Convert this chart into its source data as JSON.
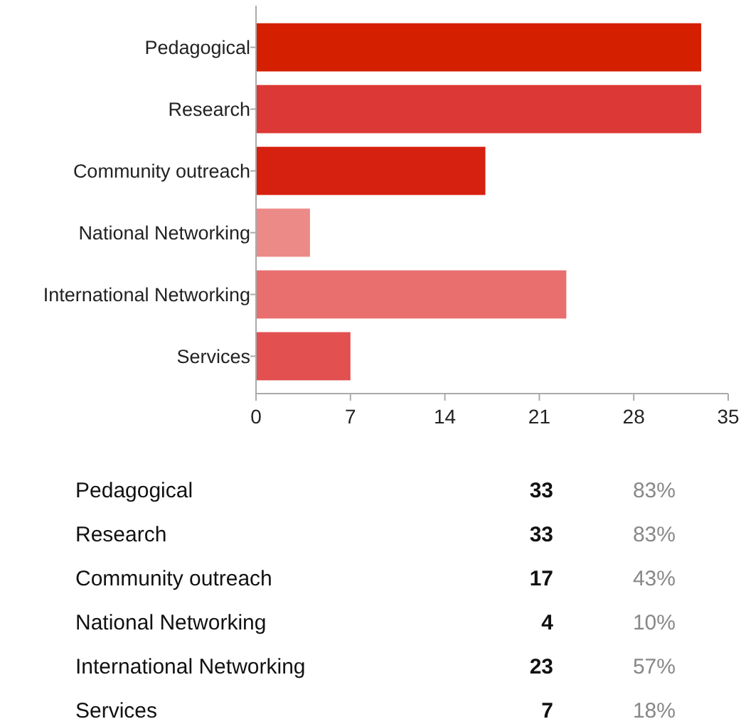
{
  "chart_data": {
    "type": "bar",
    "orientation": "horizontal",
    "categories": [
      "Pedagogical",
      "Research",
      "Community outreach",
      "National Networking",
      "International Networking",
      "Services"
    ],
    "values": [
      33,
      33,
      17,
      4,
      23,
      7
    ],
    "colors": [
      "#d41f00",
      "#dc3835",
      "#d62010",
      "#ec8a88",
      "#e86f6e",
      "#e25050"
    ],
    "xlim": [
      0,
      35
    ],
    "xticks": [
      0,
      7,
      14,
      21,
      28,
      35
    ],
    "annotations": [
      "33",
      "83%",
      "33",
      "83%",
      "17",
      "43%",
      "4",
      "10%",
      "23",
      "57%",
      "7",
      "18%"
    ]
  }
}
